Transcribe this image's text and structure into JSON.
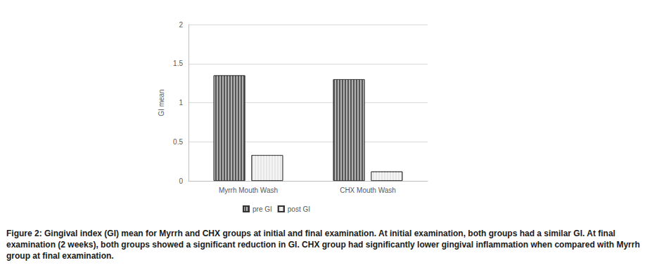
{
  "chart_data": {
    "type": "bar",
    "title": "Figure 2: Gingival index (GI) mean for Myrrh and CHX groups at initial and final examination. At initial examination, both groups had a similar GI. At final examination (2 weeks), both groups showed a significant reduction in GI. CHX group had significantly lower gingival inflammation when compared with Myrrh group at final examination.",
    "y_label": "GI mean",
    "categories": [
      "Myrrh Mouth Wash",
      "CHX Mouth Wash"
    ],
    "series": [
      {
        "name": "pre GI",
        "color": "#555555",
        "values": [
          1.35,
          1.3
        ]
      },
      {
        "name": "post GI",
        "color": "#e6e6e6",
        "values": [
          0.33,
          0.12
        ]
      }
    ],
    "ylim": [
      0,
      2
    ],
    "yticks": [
      0,
      0.5,
      1,
      1.5,
      2
    ],
    "grid": true,
    "legend": "bottom"
  }
}
